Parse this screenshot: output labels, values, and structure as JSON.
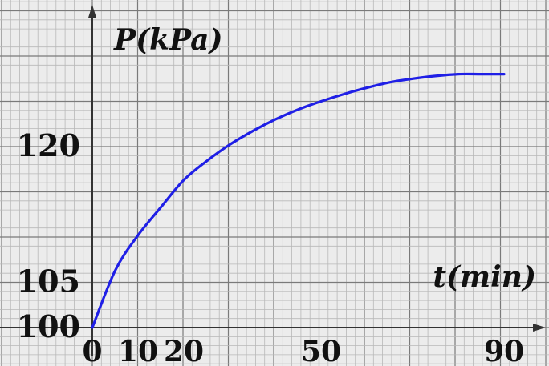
{
  "chart_data": {
    "type": "line",
    "title": "",
    "xlabel": "t(min)",
    "ylabel": "P(kPa)",
    "xlim": [
      0,
      90
    ],
    "ylim": [
      100,
      128
    ],
    "x_ticks": [
      0,
      10,
      20,
      50,
      90
    ],
    "y_ticks": [
      100,
      105,
      120
    ],
    "x_tick_labels": [
      "0",
      "10",
      "20",
      "50",
      "90"
    ],
    "y_tick_labels": [
      "100",
      "105",
      "120"
    ],
    "grid": true,
    "colors": {
      "line": "#1f1fe6",
      "grid_minor": "#b8b8b8",
      "grid_major": "#7a7a7a",
      "axis": "#333333",
      "background": "#ececec"
    },
    "series": [
      {
        "x": [
          0,
          5,
          10,
          15,
          20,
          25,
          30,
          35,
          40,
          45,
          50,
          55,
          60,
          65,
          70,
          75,
          80,
          85,
          90
        ],
        "y": [
          100.0,
          106.3,
          110.2,
          113.3,
          116.3,
          118.4,
          120.2,
          121.7,
          123.0,
          124.1,
          125.0,
          125.8,
          126.5,
          127.1,
          127.5,
          127.8,
          128.0,
          128.0,
          128.0
        ]
      }
    ]
  }
}
